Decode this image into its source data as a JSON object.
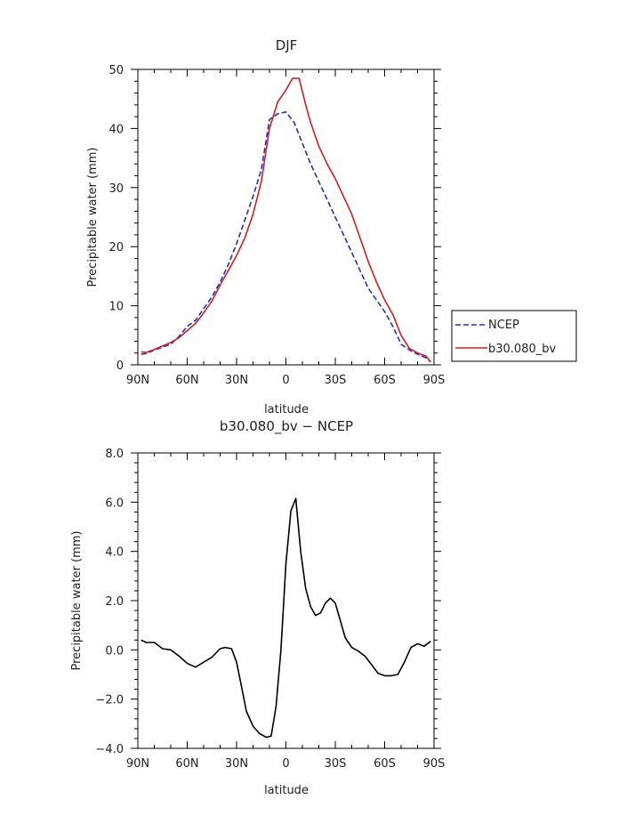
{
  "chart_data": [
    {
      "type": "line",
      "title": "DJF",
      "xlabel": "latitude",
      "ylabel": "Precipitable water (mm)",
      "xlim": [
        90,
        -90
      ],
      "ylim": [
        0,
        50
      ],
      "x_ticks": [
        90,
        60,
        30,
        0,
        -30,
        -60,
        -90
      ],
      "x_tick_labels": [
        "90N",
        "60N",
        "30N",
        "0",
        "30S",
        "60S",
        "90S"
      ],
      "y_ticks": [
        0,
        10,
        20,
        30,
        40,
        50
      ],
      "y_tick_labels": [
        "0",
        "10",
        "20",
        "30",
        "40",
        "50"
      ],
      "legend_position": "outside-right",
      "series": [
        {
          "name": "NCEP",
          "color": "#1f2fd0",
          "style": "dashed",
          "x": [
            88,
            85,
            80,
            75,
            70,
            65,
            60,
            55,
            50,
            45,
            40,
            35,
            30,
            25,
            20,
            15,
            10,
            5,
            0,
            -5,
            -10,
            -15,
            -20,
            -25,
            -30,
            -35,
            -40,
            -45,
            -50,
            -55,
            -60,
            -65,
            -70,
            -75,
            -80,
            -85,
            -88
          ],
          "y": [
            1.8,
            1.9,
            2.5,
            3.0,
            3.5,
            4.8,
            6.5,
            7.5,
            9.5,
            11.5,
            14.0,
            17.0,
            20.5,
            24.5,
            28.5,
            33.0,
            41.5,
            42.5,
            42.8,
            41.0,
            37.5,
            34.0,
            31.0,
            28.0,
            25.0,
            22.0,
            19.0,
            16.0,
            13.0,
            11.0,
            9.0,
            6.5,
            3.5,
            2.5,
            1.8,
            1.2,
            0.5
          ]
        },
        {
          "name": "b30.080_bv",
          "color": "#e01b1b",
          "style": "solid",
          "x": [
            88,
            85,
            80,
            75,
            70,
            65,
            60,
            55,
            50,
            45,
            40,
            35,
            30,
            25,
            20,
            15,
            10,
            5,
            0,
            -4,
            -8,
            -12,
            -15,
            -20,
            -25,
            -30,
            -35,
            -40,
            -45,
            -50,
            -55,
            -60,
            -65,
            -70,
            -75,
            -80,
            -85,
            -88
          ],
          "y": [
            2.2,
            2.1,
            2.6,
            3.2,
            3.8,
            4.6,
            5.8,
            7.0,
            8.8,
            10.8,
            13.5,
            16.0,
            18.5,
            21.5,
            25.5,
            31.0,
            40.0,
            44.5,
            46.5,
            48.5,
            48.5,
            44.0,
            41.0,
            37.0,
            34.0,
            31.5,
            28.5,
            25.5,
            21.5,
            17.5,
            14.0,
            11.0,
            8.5,
            5.0,
            2.8,
            2.0,
            1.5,
            0.5
          ]
        }
      ]
    },
    {
      "type": "line",
      "title": "b30.080_bv − NCEP",
      "xlabel": "latitude",
      "ylabel": "Precipitable water (mm)",
      "xlim": [
        90,
        -90
      ],
      "ylim": [
        -4.0,
        8.0
      ],
      "x_ticks": [
        90,
        60,
        30,
        0,
        -30,
        -60,
        -90
      ],
      "x_tick_labels": [
        "90N",
        "60N",
        "30N",
        "0",
        "30S",
        "60S",
        "90S"
      ],
      "y_ticks": [
        -4.0,
        -2.0,
        0.0,
        2.0,
        4.0,
        6.0,
        8.0
      ],
      "y_tick_labels": [
        "−4.0",
        "−2.0",
        "0.0",
        "2.0",
        "4.0",
        "6.0",
        "8.0"
      ],
      "series": [
        {
          "color": "#000000",
          "style": "solid",
          "x": [
            88,
            85,
            80,
            75,
            70,
            65,
            60,
            55,
            50,
            45,
            40,
            37,
            33,
            30,
            27,
            24,
            20,
            16,
            12,
            9,
            6,
            3,
            0,
            -3,
            -6,
            -9,
            -12,
            -15,
            -18,
            -21,
            -24,
            -27,
            -30,
            -33,
            -36,
            -40,
            -44,
            -48,
            -52,
            -56,
            -60,
            -64,
            -68,
            -72,
            -76,
            -80,
            -84,
            -88
          ],
          "y": [
            0.4,
            0.3,
            0.3,
            0.05,
            0.0,
            -0.25,
            -0.55,
            -0.7,
            -0.5,
            -0.3,
            0.05,
            0.1,
            0.05,
            -0.5,
            -1.5,
            -2.5,
            -3.1,
            -3.4,
            -3.55,
            -3.5,
            -2.3,
            0.0,
            3.5,
            5.65,
            6.15,
            4.0,
            2.5,
            1.75,
            1.4,
            1.5,
            1.9,
            2.1,
            1.9,
            1.2,
            0.5,
            0.1,
            -0.05,
            -0.25,
            -0.6,
            -0.95,
            -1.05,
            -1.05,
            -1.0,
            -0.5,
            0.1,
            0.25,
            0.15,
            0.35
          ]
        }
      ]
    }
  ],
  "legend": {
    "entries": [
      "NCEP",
      "b30.080_bv"
    ]
  }
}
